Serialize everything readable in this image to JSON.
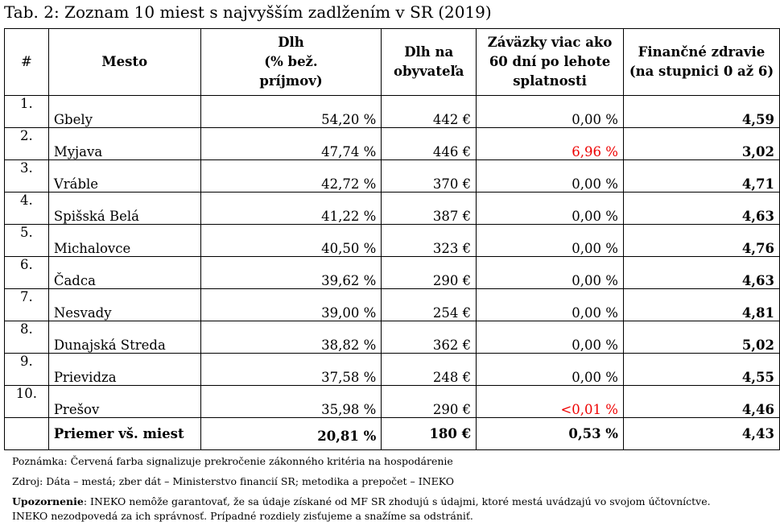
{
  "title": "Tab. 2: Zoznam 10 miest s najvyšším zadlžením v SR (2019)",
  "colors": {
    "red": "#ee0000"
  },
  "headers": {
    "rank": "#",
    "city": "Mesto",
    "debt_l1": "Dlh",
    "debt_l2": "(% bež.",
    "debt_l3": "príjmov)",
    "per_capita_l1": "Dlh na",
    "per_capita_l2": "obyvateľa",
    "overdue_l1": "Záväzky viac ako",
    "overdue_l2": "60 dní po lehote",
    "overdue_l3": "splatnosti",
    "health_l1": "Finančné zdravie",
    "health_l2": "(na stupnici 0 až 6)"
  },
  "rows": [
    {
      "rank": "1.",
      "city": "Gbely",
      "debt": "54,20 %",
      "per_capita": "442 €",
      "overdue": "0,00 %",
      "overdue_red": false,
      "health": "4,59"
    },
    {
      "rank": "2.",
      "city": "Myjava",
      "debt": "47,74 %",
      "per_capita": "446 €",
      "overdue": "6,96 %",
      "overdue_red": true,
      "health": "3,02"
    },
    {
      "rank": "3.",
      "city": "Vráble",
      "debt": "42,72 %",
      "per_capita": "370 €",
      "overdue": "0,00 %",
      "overdue_red": false,
      "health": "4,71"
    },
    {
      "rank": "4.",
      "city": "Spišská Belá",
      "debt": "41,22 %",
      "per_capita": "387 €",
      "overdue": "0,00 %",
      "overdue_red": false,
      "health": "4,63"
    },
    {
      "rank": "5.",
      "city": "Michalovce",
      "debt": "40,50 %",
      "per_capita": "323 €",
      "overdue": "0,00 %",
      "overdue_red": false,
      "health": "4,76"
    },
    {
      "rank": "6.",
      "city": "Čadca",
      "debt": "39,62 %",
      "per_capita": "290 €",
      "overdue": "0,00 %",
      "overdue_red": false,
      "health": "4,63"
    },
    {
      "rank": "7.",
      "city": "Nesvady",
      "debt": "39,00 %",
      "per_capita": "254 €",
      "overdue": "0,00 %",
      "overdue_red": false,
      "health": "4,81"
    },
    {
      "rank": "8.",
      "city": "Dunajská Streda",
      "debt": "38,82 %",
      "per_capita": "362 €",
      "overdue": "0,00 %",
      "overdue_red": false,
      "health": "5,02"
    },
    {
      "rank": "9.",
      "city": "Prievidza",
      "debt": "37,58 %",
      "per_capita": "248 €",
      "overdue": "0,00 %",
      "overdue_red": false,
      "health": "4,55"
    },
    {
      "rank": "10.",
      "city": "Prešov",
      "debt": "35,98 %",
      "per_capita": "290 €",
      "overdue": "<0,01 %",
      "overdue_red": true,
      "health": "4,46"
    }
  ],
  "average": {
    "label": "Priemer vš. miest",
    "debt": "20,81 %",
    "per_capita": "180 €",
    "overdue": "0,53 %",
    "health": "4,43"
  },
  "notes": {
    "note": "Poznámka: Červená farba signalizuje prekročenie zákonného kritéria na hospodárenie",
    "source": "Zdroj: Dáta – mestá; zber dát – Ministerstvo financií SR; metodika a prepočet – INEKO",
    "warning_label": "Upozornenie",
    "warning_line1": ": INEKO nemôže garantovať, že sa údaje získané od MF SR zhodujú s údajmi, ktoré mestá uvádzajú vo svojom účtovníctve.",
    "warning_line2": "INEKO nezodpovedá za ich správnosť. Prípadné rozdiely zisťujeme a snažíme sa odstrániť."
  }
}
